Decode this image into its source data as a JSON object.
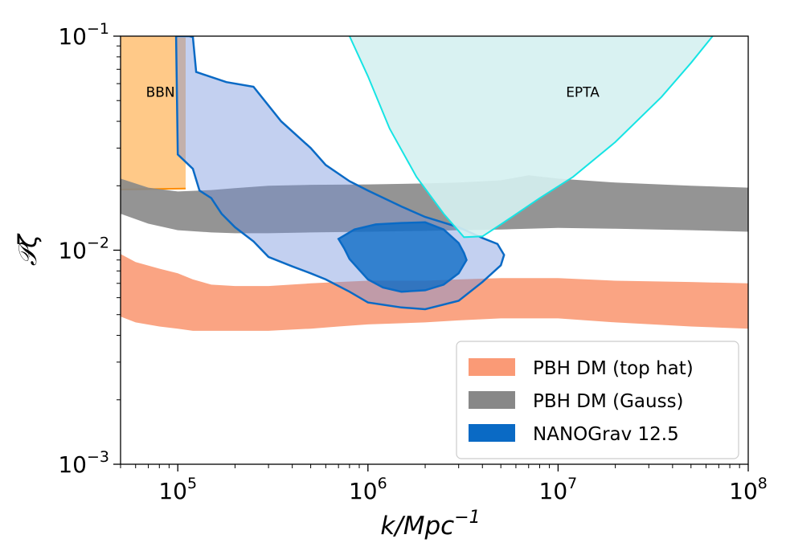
{
  "chart_data": {
    "type": "area",
    "title": "",
    "xlabel": "k/Mpc^-1",
    "xlabel_base": "k/Mpc",
    "xlabel_exp": "−1",
    "ylabel": "𝒫ζ",
    "x_scale": "log",
    "y_scale": "log",
    "xlim": [
      50000,
      100000000
    ],
    "ylim": [
      0.001,
      0.1
    ],
    "x_ticks": [
      {
        "value": 100000,
        "base": "10",
        "exp": "5"
      },
      {
        "value": 1000000,
        "base": "10",
        "exp": "6"
      },
      {
        "value": 10000000,
        "base": "10",
        "exp": "7"
      },
      {
        "value": 100000000,
        "base": "10",
        "exp": "8"
      }
    ],
    "y_ticks": [
      {
        "value": 0.001,
        "base": "10",
        "exp": "−3"
      },
      {
        "value": 0.01,
        "base": "10",
        "exp": "−2"
      },
      {
        "value": 0.1,
        "base": "10",
        "exp": "−1"
      }
    ],
    "grid": false,
    "legend_position": "bottom-right",
    "region_labels": [
      {
        "text": "BBN",
        "x": 68000,
        "y": 0.052
      },
      {
        "text": "EPTA",
        "x": 11000000,
        "y": 0.052
      }
    ],
    "series": [
      {
        "name": "PBH DM (top hat)",
        "kind": "band",
        "color": "#fa9a76",
        "x": [
          50000,
          60000,
          80000,
          100000,
          120000,
          150000,
          200000,
          300000,
          500000,
          700000,
          1000000,
          2000000,
          3000000,
          5000000,
          10000000,
          20000000,
          50000000,
          100000000
        ],
        "upper": [
          0.0096,
          0.0088,
          0.0082,
          0.0078,
          0.0073,
          0.0069,
          0.0068,
          0.0068,
          0.007,
          0.0071,
          0.0072,
          0.0072,
          0.0073,
          0.0074,
          0.0074,
          0.0072,
          0.0071,
          0.007
        ],
        "lower": [
          0.0049,
          0.0046,
          0.0044,
          0.0043,
          0.0042,
          0.0042,
          0.0042,
          0.0042,
          0.0043,
          0.0044,
          0.0045,
          0.0046,
          0.0047,
          0.0048,
          0.0048,
          0.0046,
          0.0044,
          0.0043
        ]
      },
      {
        "name": "PBH DM (Gauss)",
        "kind": "band",
        "color": "#888888",
        "x": [
          50000,
          70000,
          100000,
          150000,
          200000,
          300000,
          500000,
          1000000,
          2000000,
          3000000,
          5000000,
          7000000,
          10000000,
          20000000,
          50000000,
          100000000
        ],
        "upper": [
          0.0216,
          0.0196,
          0.0188,
          0.0191,
          0.0195,
          0.02,
          0.0202,
          0.0203,
          0.0205,
          0.0207,
          0.0212,
          0.0224,
          0.0216,
          0.0207,
          0.02,
          0.0196
        ],
        "lower": [
          0.0148,
          0.0133,
          0.0124,
          0.0121,
          0.012,
          0.012,
          0.0121,
          0.0122,
          0.0123,
          0.0124,
          0.0125,
          0.0126,
          0.0127,
          0.0126,
          0.0124,
          0.0122
        ]
      },
      {
        "name": "NANOGrav 12.5",
        "kind": "contour",
        "color": "#0a6ac5",
        "outer": {
          "x": [
            98000,
            100000,
            115000,
            120000,
            125000,
            180000,
            250000,
            350000,
            500000,
            600000,
            800000,
            1000000,
            1500000,
            2000000,
            3000000,
            4000000,
            4800000,
            5200000,
            5000000,
            4000000,
            3000000,
            2000000,
            1500000,
            1000000,
            800000,
            600000,
            500000,
            400000,
            300000,
            250000,
            200000,
            170000,
            150000,
            130000,
            120000,
            100000,
            98000
          ],
          "y": [
            0.1,
            0.1,
            0.1,
            0.099,
            0.068,
            0.061,
            0.058,
            0.04,
            0.03,
            0.025,
            0.021,
            0.019,
            0.016,
            0.0143,
            0.0128,
            0.0114,
            0.0107,
            0.0095,
            0.0085,
            0.0071,
            0.0058,
            0.0053,
            0.0054,
            0.0057,
            0.0064,
            0.0073,
            0.0078,
            0.0084,
            0.0093,
            0.011,
            0.0128,
            0.0148,
            0.0175,
            0.019,
            0.024,
            0.028,
            0.1
          ]
        },
        "inner": {
          "x": [
            700000,
            850000,
            1100000,
            1500000,
            2000000,
            2500000,
            3000000,
            3200000,
            3300000,
            3000000,
            2500000,
            2000000,
            1500000,
            1200000,
            1000000,
            900000,
            800000,
            750000,
            700000
          ],
          "y": [
            0.0113,
            0.0125,
            0.0132,
            0.0134,
            0.0135,
            0.0125,
            0.0108,
            0.0097,
            0.009,
            0.0078,
            0.0069,
            0.0065,
            0.0064,
            0.0067,
            0.0073,
            0.0081,
            0.0091,
            0.0102,
            0.0113
          ]
        }
      },
      {
        "name": "BBN",
        "kind": "region",
        "color": "#ffc988",
        "edge_color": "#ff8c00",
        "x": [
          50000,
          98000,
          100000,
          105000,
          110000,
          110000,
          50000
        ],
        "y": [
          0.1,
          0.1,
          0.0985,
          0.0985,
          0.0985,
          0.0194,
          0.0192
        ]
      },
      {
        "name": "EPTA",
        "kind": "region",
        "color": "#d5f1f1",
        "edge_color": "#16e4e4",
        "x": [
          800000,
          1000000,
          1300000,
          1800000,
          2500000,
          3200000,
          4000000,
          5000000,
          8000000,
          12000000,
          20000000,
          35000000,
          50000000,
          65000000
        ],
        "y": [
          0.1,
          0.065,
          0.037,
          0.022,
          0.0148,
          0.0115,
          0.0116,
          0.0132,
          0.0175,
          0.022,
          0.032,
          0.052,
          0.075,
          0.1
        ]
      }
    ]
  }
}
